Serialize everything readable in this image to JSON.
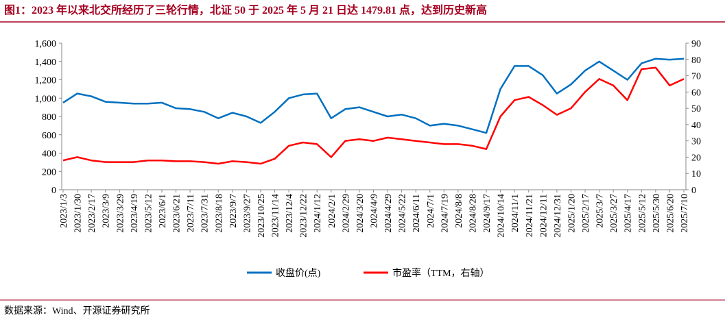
{
  "chart_data": {
    "type": "line",
    "title": "图1：2023 年以来北交所经历了三轮行情，北证 50 于 2025 年 5 月 21 日达 1479.81 点，达到历史新高",
    "source": "数据来源：Wind、开源证券研究所",
    "categories": [
      "2023/1/3",
      "2023/1/30",
      "2023/2/17",
      "2023/3/9",
      "2023/3/29",
      "2023/4/19",
      "2023/5/12",
      "2023/6/1",
      "2023/6/21",
      "2023/7/11",
      "2023/7/31",
      "2023/8/18",
      "2023/9/7",
      "2023/9/27",
      "2023/10/25",
      "2023/11/14",
      "2023/12/4",
      "2023/12/22",
      "2024/1/12",
      "2024/2/1",
      "2024/2/29",
      "2024/3/20",
      "2024/4/9",
      "2024/4/29",
      "2024/5/22",
      "2024/6/11",
      "2024/7/1",
      "2024/7/19",
      "2024/8/8",
      "2024/8/28",
      "2024/9/17",
      "2024/10/14",
      "2024/11/1",
      "2024/11/21",
      "2024/12/11",
      "2024/12/31",
      "2025/1/20",
      "2025/2/17",
      "2025/3/7",
      "2025/3/27",
      "2025/4/17",
      "2025/5/12",
      "2025/5/30",
      "2025/6/20",
      "2025/7/10"
    ],
    "series": [
      {
        "name": "收盘价(点)",
        "color": "#0070c0",
        "values": [
          950,
          1050,
          1020,
          960,
          950,
          940,
          940,
          950,
          890,
          880,
          850,
          780,
          840,
          800,
          730,
          850,
          1000,
          1040,
          1050,
          780,
          880,
          900,
          850,
          800,
          820,
          780,
          700,
          720,
          700,
          660,
          620,
          1100,
          1350,
          1350,
          1250,
          1050,
          1150,
          1300,
          1400,
          1300,
          1200,
          1380,
          1430,
          1420,
          1430
        ]
      },
      {
        "name": "市盈率（TTM，右轴）",
        "color": "#ff0000",
        "axis": "y2",
        "values": [
          18,
          20,
          18,
          17,
          17,
          17,
          18,
          18,
          17.5,
          17.5,
          17,
          16,
          17.5,
          17,
          16,
          19,
          27,
          29,
          28,
          20,
          30,
          31,
          30,
          32,
          31,
          30,
          29,
          28,
          28,
          27,
          25,
          45,
          55,
          57,
          52,
          46,
          50,
          60,
          68,
          64,
          55,
          74,
          75,
          64,
          68
        ]
      }
    ],
    "ylim": [
      0,
      1600
    ],
    "yticks": [
      0,
      200,
      400,
      600,
      800,
      {
        "value": 1000,
        "label": "1,000"
      },
      {
        "value": 1200,
        "label": "1,200"
      },
      {
        "value": 1400,
        "label": "1,400"
      },
      {
        "value": 1600,
        "label": "1,600"
      }
    ],
    "y2lim": [
      0,
      90
    ],
    "y2ticks": [
      0,
      10,
      20,
      30,
      40,
      50,
      60,
      70,
      80,
      90
    ],
    "legend": "bottom"
  }
}
